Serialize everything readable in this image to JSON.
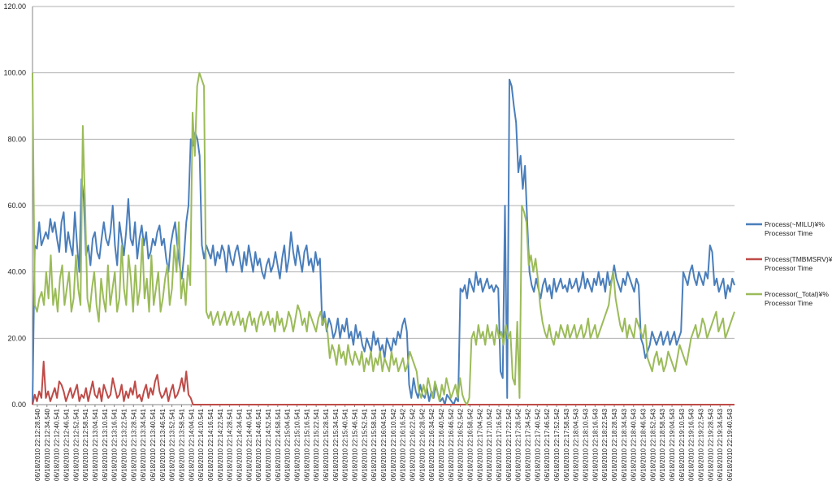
{
  "chart_data": {
    "type": "line",
    "title": "",
    "xlabel": "",
    "ylabel": "",
    "ylim": [
      0,
      120
    ],
    "y_ticks": [
      "0.00",
      "20.00",
      "40.00",
      "60.00",
      "80.00",
      "100.00",
      "120.00"
    ],
    "grid": "horizontal",
    "legend_position": "right",
    "x_ticks": [
      "06/18/2010 22:12:28.540",
      "06/18/2010 22:12:34.540",
      "06/18/2010 22:12:40.541",
      "06/18/2010 22:12:46.541",
      "06/18/2010 22:12:52.541",
      "06/18/2010 22:12:58.541",
      "06/18/2010 22:13:04.541",
      "06/18/2010 22:13:10.541",
      "06/18/2010 22:13:16.541",
      "06/18/2010 22:13:22.541",
      "06/18/2010 22:13:28.541",
      "06/18/2010 22:13:34.541",
      "06/18/2010 22:13:40.541",
      "06/18/2010 22:13:46.541",
      "06/18/2010 22:13:52.541",
      "06/18/2010 22:13:58.541",
      "06/18/2010 22:14:04.541",
      "06/18/2010 22:14:10.541",
      "06/18/2010 22:14:16.541",
      "06/18/2010 22:14:22.541",
      "06/18/2010 22:14:28.541",
      "06/18/2010 22:14:34.541",
      "06/18/2010 22:14:40.541",
      "06/18/2010 22:14:46.541",
      "06/18/2010 22:14:52.541",
      "06/18/2010 22:14:58.541",
      "06/18/2010 22:15:04.541",
      "06/18/2010 22:15:10.541",
      "06/18/2010 22:15:16.541",
      "06/18/2010 22:15:22.541",
      "06/18/2010 22:15:28.541",
      "06/18/2010 22:15:34.541",
      "06/18/2010 22:15:40.541",
      "06/18/2010 22:15:46.541",
      "06/18/2010 22:15:52.541",
      "06/18/2010 22:15:58.541",
      "06/18/2010 22:16:04.541",
      "06/18/2010 22:16:10.542",
      "06/18/2010 22:16:16.542",
      "06/18/2010 22:16:22.542",
      "06/18/2010 22:16:28.542",
      "06/18/2010 22:16:34.542",
      "06/18/2010 22:16:40.542",
      "06/18/2010 22:16:46.542",
      "06/18/2010 22:16:52.542",
      "06/18/2010 22:16:58.542",
      "06/18/2010 22:17:04.542",
      "06/18/2010 22:17:10.542",
      "06/18/2010 22:17:16.542",
      "06/18/2010 22:17:22.542",
      "06/18/2010 22:17:28.542",
      "06/18/2010 22:17:34.542",
      "06/18/2010 22:17:40.542",
      "06/18/2010 22:17:46.542",
      "06/18/2010 22:17:52.542",
      "06/18/2010 22:17:58.543",
      "06/18/2010 22:18:04.543",
      "06/18/2010 22:18:10.543",
      "06/18/2010 22:18:16.543",
      "06/18/2010 22:18:22.543",
      "06/18/2010 22:18:28.543",
      "06/18/2010 22:18:34.543",
      "06/18/2010 22:18:40.543",
      "06/18/2010 22:18:46.543",
      "06/18/2010 22:18:52.543",
      "06/18/2010 22:18:58.543",
      "06/18/2010 22:19:04.543",
      "06/18/2010 22:19:10.543",
      "06/18/2010 22:19:16.543",
      "06/18/2010 22:19:22.543",
      "06/18/2010 22:19:28.543",
      "06/18/2010 22:19:34.543",
      "06/18/2010 22:19:40.543"
    ],
    "series": [
      {
        "name": "Process(~MILU)¥% Processor Time",
        "color": "#4a7ebb",
        "values": [
          0,
          48,
          47,
          55,
          48,
          50,
          52,
          50,
          56,
          52,
          55,
          50,
          46,
          55,
          58,
          46,
          52,
          48,
          45,
          58,
          48,
          40,
          68,
          62,
          45,
          48,
          42,
          50,
          52,
          46,
          44,
          50,
          55,
          50,
          48,
          52,
          60,
          48,
          42,
          55,
          50,
          45,
          52,
          62,
          50,
          48,
          55,
          44,
          50,
          54,
          48,
          52,
          44,
          46,
          50,
          48,
          52,
          54,
          48,
          50,
          44,
          40,
          48,
          52,
          55,
          48,
          42,
          38,
          45,
          55,
          60,
          80,
          78,
          82,
          80,
          75,
          48,
          44,
          48,
          46,
          44,
          48,
          42,
          46,
          44,
          48,
          46,
          40,
          48,
          44,
          42,
          46,
          48,
          44,
          40,
          46,
          42,
          48,
          44,
          40,
          46,
          42,
          44,
          40,
          38,
          42,
          44,
          40,
          42,
          46,
          42,
          38,
          44,
          48,
          40,
          44,
          52,
          46,
          42,
          48,
          44,
          40,
          46,
          48,
          42,
          44,
          40,
          46,
          42,
          44,
          24,
          28,
          22,
          26,
          24,
          20,
          22,
          26,
          20,
          24,
          22,
          26,
          20,
          22,
          18,
          24,
          20,
          22,
          18,
          16,
          20,
          18,
          16,
          22,
          18,
          20,
          16,
          18,
          14,
          20,
          18,
          16,
          20,
          18,
          22,
          20,
          24,
          26,
          22,
          6,
          2,
          8,
          4,
          2,
          6,
          3,
          2,
          5,
          1,
          4,
          2,
          6,
          3,
          1,
          2,
          0,
          3,
          2,
          1,
          0,
          2,
          1,
          35,
          34,
          36,
          32,
          38,
          36,
          34,
          40,
          36,
          38,
          34,
          36,
          38,
          35,
          36,
          34,
          36,
          35,
          10,
          8,
          60,
          2,
          98,
          96,
          90,
          85,
          70,
          75,
          65,
          72,
          55,
          40,
          36,
          34,
          38,
          35,
          32,
          36,
          38,
          34,
          36,
          32,
          38,
          34,
          36,
          38,
          35,
          36,
          34,
          38,
          35,
          36,
          38,
          34,
          36,
          40,
          35,
          38,
          36,
          34,
          38,
          36,
          40,
          36,
          38,
          34,
          40,
          36,
          38,
          42,
          38,
          36,
          34,
          38,
          36,
          40,
          38,
          36,
          34,
          38,
          36,
          20,
          18,
          14,
          16,
          18,
          22,
          20,
          18,
          20,
          22,
          18,
          20,
          22,
          18,
          20,
          22,
          18,
          20,
          22,
          40,
          38,
          36,
          40,
          42,
          38,
          36,
          40,
          38,
          36,
          40,
          38,
          48,
          46,
          36,
          38,
          34,
          36,
          38,
          32,
          36,
          34,
          38,
          36
        ]
      },
      {
        "name": "Process(TMBMSRV)¥% Processor Time",
        "color": "#be4b48",
        "values": [
          0,
          3,
          1,
          4,
          2,
          13,
          2,
          4,
          1,
          3,
          5,
          2,
          7,
          6,
          4,
          1,
          3,
          5,
          2,
          4,
          6,
          1,
          3,
          2,
          5,
          1,
          4,
          7,
          3,
          2,
          5,
          1,
          6,
          4,
          2,
          3,
          8,
          5,
          2,
          3,
          6,
          1,
          4,
          2,
          5,
          3,
          7,
          2,
          3,
          1,
          4,
          6,
          2,
          5,
          3,
          7,
          9,
          4,
          2,
          3,
          5,
          1,
          4,
          6,
          2,
          3,
          5,
          8,
          4,
          10,
          3,
          2,
          0,
          0,
          0,
          0,
          0,
          0,
          0,
          0,
          0,
          0,
          0,
          0,
          0,
          0,
          0,
          0,
          0,
          0,
          0,
          0,
          0,
          0,
          0,
          0,
          0,
          0,
          0,
          0,
          0,
          0,
          0,
          0,
          0,
          0,
          0,
          0,
          0,
          0,
          0,
          0,
          0,
          0,
          0,
          0,
          0,
          0,
          0,
          0,
          0,
          0,
          0,
          0,
          0,
          0,
          0,
          0,
          0,
          0,
          0,
          0,
          0,
          0,
          0,
          0,
          0,
          0,
          0,
          0,
          0,
          0,
          0,
          0,
          0,
          0,
          0,
          0,
          0,
          0,
          0,
          0,
          0,
          0,
          0,
          0,
          0,
          0,
          0,
          0,
          0,
          0,
          0,
          0,
          0,
          0,
          0,
          0,
          0,
          0,
          0,
          0,
          0,
          0,
          0,
          0,
          0,
          0,
          0,
          0,
          0,
          0,
          0,
          0,
          0,
          0,
          0,
          0,
          0,
          0,
          0,
          0,
          0,
          0,
          0,
          0,
          0,
          0,
          0,
          0,
          0,
          0,
          0,
          0,
          0,
          0,
          0,
          0,
          0,
          0,
          0,
          0,
          0,
          0,
          0,
          0,
          0,
          0,
          0,
          0,
          0,
          0,
          0,
          0,
          0,
          0,
          0,
          0,
          0,
          0,
          0,
          0,
          0,
          0,
          0,
          0,
          0,
          0,
          0,
          0,
          0,
          0,
          0,
          0,
          0,
          0,
          0,
          0,
          0,
          0,
          0,
          0,
          0,
          0,
          0,
          0,
          0,
          0,
          0,
          0,
          0,
          0,
          0,
          0,
          0,
          0,
          0,
          0,
          0,
          0,
          0,
          0,
          0,
          0,
          0,
          0,
          0,
          0,
          0,
          0,
          0,
          0,
          0,
          0,
          0,
          0,
          0,
          0,
          0,
          0,
          0,
          0,
          0,
          0,
          0,
          0,
          0,
          0,
          0,
          0,
          0,
          0,
          0,
          0,
          0,
          0,
          0,
          0,
          0,
          0,
          0,
          0,
          0,
          0,
          0,
          0
        ]
      },
      {
        "name": "Processor(_Total)¥% Processor Time",
        "color": "#9bbb59",
        "values": [
          100,
          30,
          28,
          32,
          34,
          30,
          40,
          32,
          45,
          30,
          35,
          28,
          38,
          42,
          30,
          35,
          40,
          28,
          32,
          45,
          35,
          30,
          84,
          60,
          32,
          28,
          35,
          40,
          30,
          25,
          38,
          32,
          28,
          42,
          30,
          35,
          40,
          28,
          32,
          48,
          35,
          30,
          45,
          38,
          28,
          42,
          30,
          35,
          50,
          32,
          38,
          28,
          45,
          30,
          35,
          40,
          28,
          32,
          38,
          42,
          30,
          35,
          48,
          40,
          55,
          32,
          38,
          30,
          42,
          36,
          88,
          75,
          96,
          100,
          98,
          96,
          28,
          26,
          28,
          24,
          26,
          28,
          24,
          26,
          28,
          24,
          26,
          28,
          24,
          26,
          28,
          24,
          26,
          22,
          26,
          28,
          24,
          26,
          22,
          26,
          28,
          24,
          26,
          28,
          24,
          26,
          22,
          28,
          24,
          26,
          22,
          24,
          28,
          26,
          22,
          26,
          30,
          28,
          24,
          26,
          22,
          28,
          26,
          24,
          22,
          26,
          28,
          24,
          26,
          22,
          14,
          18,
          16,
          12,
          18,
          14,
          16,
          12,
          18,
          14,
          12,
          16,
          14,
          12,
          16,
          10,
          14,
          12,
          16,
          10,
          14,
          12,
          16,
          10,
          14,
          12,
          10,
          16,
          12,
          14,
          10,
          12,
          14,
          10,
          12,
          16,
          14,
          12,
          10,
          4,
          2,
          6,
          3,
          8,
          5,
          2,
          7,
          4,
          1,
          6,
          3,
          8,
          5,
          2,
          4,
          6,
          2,
          8,
          3,
          1,
          0,
          2,
          20,
          22,
          18,
          24,
          20,
          22,
          18,
          24,
          20,
          22,
          18,
          24,
          20,
          22,
          18,
          24,
          20,
          22,
          8,
          6,
          25,
          2,
          60,
          58,
          55,
          42,
          45,
          40,
          44,
          38,
          30,
          25,
          22,
          20,
          24,
          20,
          18,
          22,
          20,
          24,
          22,
          20,
          24,
          20,
          22,
          24,
          20,
          22,
          24,
          20,
          22,
          26,
          20,
          22,
          24,
          20,
          22,
          24,
          26,
          28,
          30,
          36,
          40,
          32,
          28,
          24,
          22,
          26,
          20,
          24,
          22,
          20,
          26,
          24,
          22,
          20,
          24,
          14,
          12,
          10,
          14,
          16,
          12,
          14,
          10,
          12,
          16,
          14,
          12,
          10,
          14,
          18,
          16,
          14,
          12,
          16,
          20,
          22,
          24,
          20,
          22,
          26,
          24,
          20,
          22,
          24,
          26,
          28,
          22,
          24,
          26,
          20,
          22,
          24,
          26,
          28
        ]
      }
    ]
  }
}
